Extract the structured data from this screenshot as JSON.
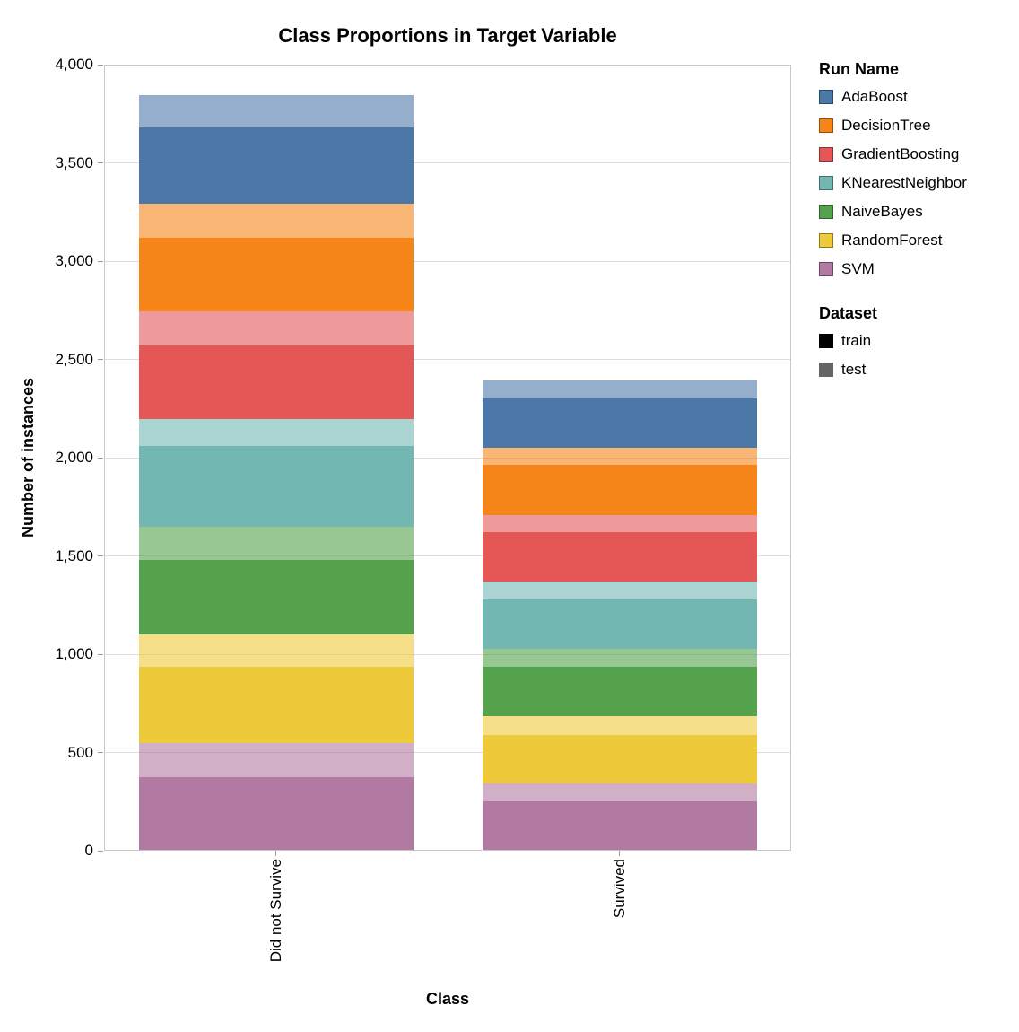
{
  "legend": {
    "run_name_header": "Run Name",
    "dataset_header": "Dataset"
  },
  "chart_data": {
    "type": "bar",
    "stacked": true,
    "title": "Class Proportions in Target Variable",
    "xlabel": "Class",
    "ylabel": "Number of instances",
    "categories": [
      "Did not Survive",
      "Survived"
    ],
    "ylim": [
      0,
      4000
    ],
    "ytick_step": 500,
    "ytick_labels": [
      "0",
      "500",
      "1,000",
      "1,500",
      "2,000",
      "2,500",
      "3,000",
      "3,500",
      "4,000"
    ],
    "grid": true,
    "legend_position": "right",
    "runs": [
      {
        "name": "AdaBoost",
        "color": "#4c78a8"
      },
      {
        "name": "DecisionTree",
        "color": "#f58518"
      },
      {
        "name": "GradientBoosting",
        "color": "#e45756"
      },
      {
        "name": "KNearestNeighbor",
        "color": "#72b7b2"
      },
      {
        "name": "NaiveBayes",
        "color": "#54a24b"
      },
      {
        "name": "RandomForest",
        "color": "#eeca3b"
      },
      {
        "name": "SVM",
        "color": "#b279a2"
      }
    ],
    "datasets": [
      {
        "name": "train",
        "opacity": 1.0,
        "symbol_color": "#000000"
      },
      {
        "name": "test",
        "opacity": 0.6,
        "symbol_color": "#000000"
      }
    ],
    "stack_order_bottom_to_top": [
      "SVM",
      "RandomForest",
      "NaiveBayes",
      "KNearestNeighbor",
      "GradientBoosting",
      "DecisionTree",
      "AdaBoost"
    ],
    "series": [
      {
        "run": "SVM",
        "dataset": "train",
        "values": [
          375,
          250
        ]
      },
      {
        "run": "SVM",
        "dataset": "test",
        "values": [
          174,
          92
        ]
      },
      {
        "run": "RandomForest",
        "dataset": "train",
        "values": [
          386,
          248
        ]
      },
      {
        "run": "RandomForest",
        "dataset": "test",
        "values": [
          165,
          94
        ]
      },
      {
        "run": "NaiveBayes",
        "dataset": "train",
        "values": [
          380,
          251
        ]
      },
      {
        "run": "NaiveBayes",
        "dataset": "test",
        "values": [
          168,
          91
        ]
      },
      {
        "run": "KNearestNeighbor",
        "dataset": "train",
        "values": [
          412,
          254
        ]
      },
      {
        "run": "KNearestNeighbor",
        "dataset": "test",
        "values": [
          136,
          88
        ]
      },
      {
        "run": "GradientBoosting",
        "dataset": "train",
        "values": [
          374,
          252
        ]
      },
      {
        "run": "GradientBoosting",
        "dataset": "test",
        "values": [
          175,
          90
        ]
      },
      {
        "run": "DecisionTree",
        "dataset": "train",
        "values": [
          375,
          255
        ]
      },
      {
        "run": "DecisionTree",
        "dataset": "test",
        "values": [
          174,
          87
        ]
      },
      {
        "run": "AdaBoost",
        "dataset": "train",
        "values": [
          386,
          248
        ]
      },
      {
        "run": "AdaBoost",
        "dataset": "test",
        "values": [
          163,
          94
        ]
      }
    ]
  }
}
